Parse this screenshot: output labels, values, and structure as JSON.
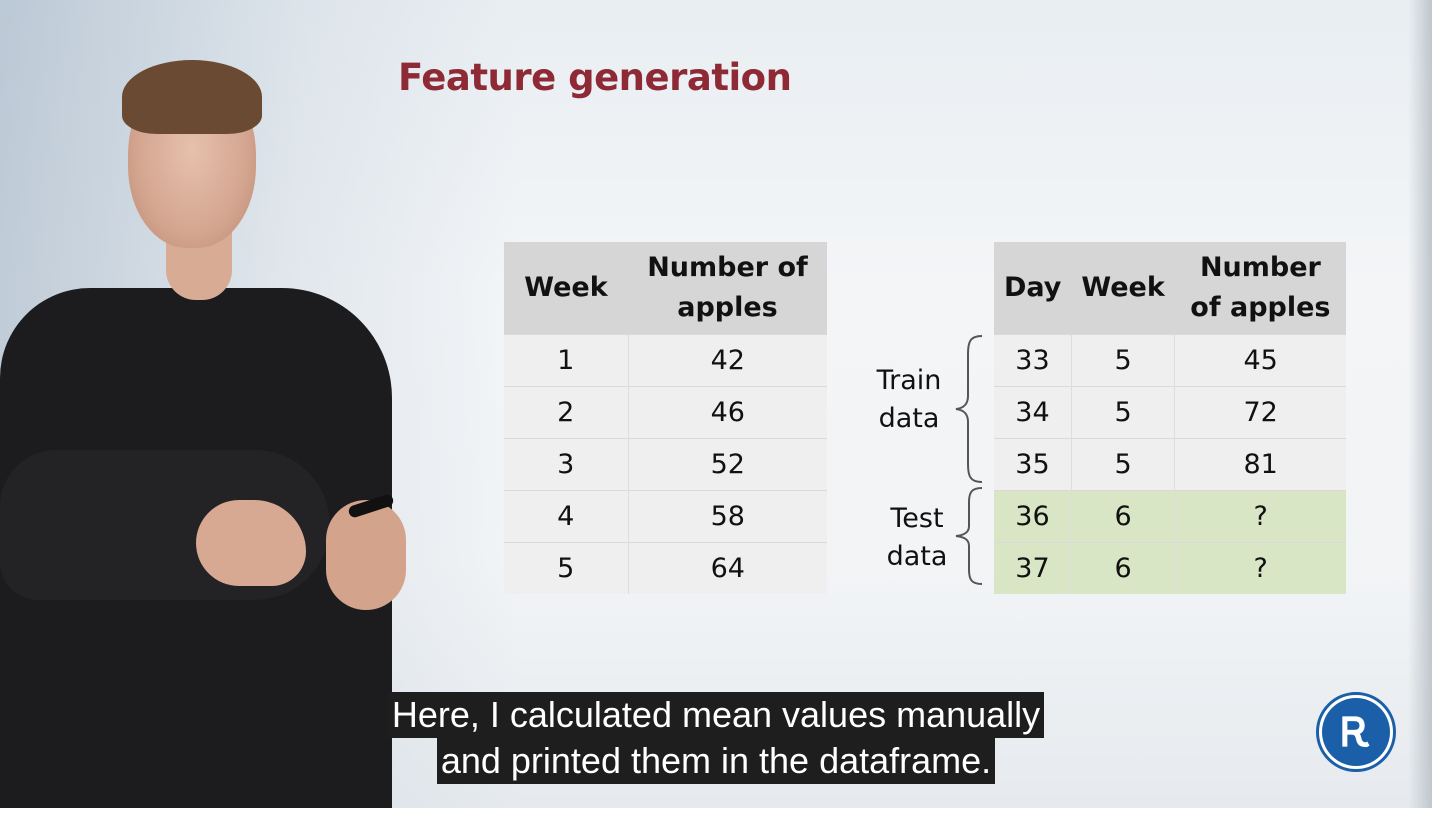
{
  "slide": {
    "title": "Feature generation"
  },
  "left_table": {
    "headers": [
      "Week",
      "Number of\napples"
    ],
    "rows": [
      [
        "1",
        "42"
      ],
      [
        "2",
        "46"
      ],
      [
        "3",
        "52"
      ],
      [
        "4",
        "58"
      ],
      [
        "5",
        "64"
      ]
    ]
  },
  "right_table": {
    "headers": [
      "Day",
      "Week",
      "Number\nof apples"
    ],
    "rows": [
      [
        "33",
        "5",
        "45"
      ],
      [
        "34",
        "5",
        "72"
      ],
      [
        "35",
        "5",
        "81"
      ],
      [
        "36",
        "6",
        "?"
      ],
      [
        "37",
        "6",
        "?"
      ]
    ]
  },
  "groups": {
    "train": "Train\ndata",
    "test": "Test\ndata"
  },
  "subtitles": [
    "Here, I calculated mean values manually",
    "and printed them in the dataframe."
  ],
  "colors": {
    "title": "#8e2a35",
    "test_row": "#d9e6c6",
    "logo": "#1b5fa8"
  },
  "icons": {
    "logo": "hse-logo-icon"
  }
}
